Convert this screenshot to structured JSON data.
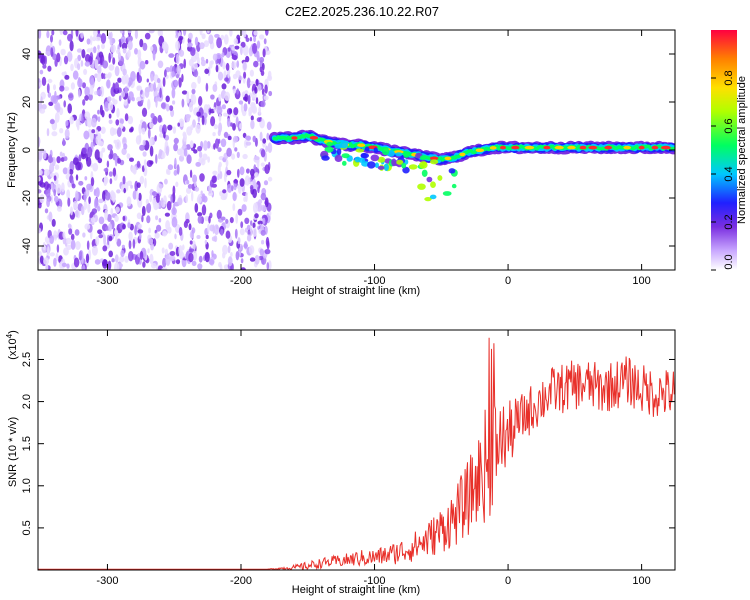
{
  "figure_title": "C2E2.2025.236.10.22.R07",
  "chart_data": [
    {
      "type": "heatmap",
      "title": "C2E2.2025.236.10.22.R07",
      "xlabel": "Height of straight line (km)",
      "ylabel": "Frequency (Hz)",
      "xlim": [
        -352,
        125
      ],
      "ylim": [
        -50,
        50
      ],
      "x_ticks": [
        -300,
        -200,
        -100,
        0,
        100
      ],
      "y_ticks": [
        -40,
        -20,
        0,
        20,
        40
      ],
      "noise_region_x": [
        -352,
        -178
      ],
      "signal_track": {
        "description": "frequency ridge vs height",
        "x": [
          -175,
          -160,
          -150,
          -140,
          -130,
          -120,
          -110,
          -100,
          -90,
          -80,
          -70,
          -60,
          -50,
          -40,
          -30,
          -20,
          -10,
          0,
          20,
          40,
          60,
          80,
          100,
          125
        ],
        "freq": [
          5,
          5,
          6,
          4,
          3,
          2,
          2,
          1,
          0,
          -1,
          -2,
          -3,
          -4,
          -3,
          -1,
          0,
          1,
          1,
          1,
          1,
          1,
          1,
          1,
          1
        ]
      },
      "colorbar": {
        "label": "Normalized spectral amplitude",
        "range": [
          0.0,
          1.0
        ],
        "ticks": [
          0.0,
          0.2,
          0.4,
          0.6,
          0.8
        ],
        "tick_labels": [
          "0.0",
          "0.2",
          "0.4",
          "0.6",
          "0.8"
        ]
      }
    },
    {
      "type": "line",
      "xlabel": "Height of straight line (km)",
      "ylabel": "SNR (10 * v/v)",
      "y_multiplier": "(x10",
      "y_multiplier_exp": "4",
      "y_multiplier_close": ")",
      "xlim": [
        -352,
        125
      ],
      "ylim": [
        0.0,
        2.85
      ],
      "x_ticks": [
        -300,
        -200,
        -100,
        0,
        100
      ],
      "y_ticks": [
        0.5,
        1.0,
        1.5,
        2.0,
        2.5
      ],
      "y_tick_labels": [
        "0.5",
        "1.0",
        "1.5",
        "2.0",
        "2.5"
      ],
      "color": "#e8302a",
      "series": [
        {
          "name": "SNR",
          "x": [
            -352,
            -300,
            -250,
            -200,
            -180,
            -160,
            -150,
            -140,
            -130,
            -120,
            -110,
            -100,
            -90,
            -80,
            -70,
            -60,
            -50,
            -40,
            -30,
            -20,
            -15,
            -10,
            -5,
            0,
            5,
            10,
            20,
            30,
            40,
            50,
            60,
            70,
            80,
            90,
            100,
            110,
            125
          ],
          "values": [
            0.01,
            0.01,
            0.01,
            0.01,
            0.01,
            0.03,
            0.05,
            0.08,
            0.1,
            0.12,
            0.14,
            0.15,
            0.18,
            0.22,
            0.28,
            0.36,
            0.48,
            0.62,
            0.85,
            1.15,
            1.3,
            1.45,
            1.55,
            1.6,
            1.7,
            1.8,
            1.95,
            2.1,
            2.15,
            2.2,
            2.2,
            2.15,
            2.2,
            2.25,
            2.15,
            2.1,
            2.1
          ],
          "spread": [
            0,
            0,
            0,
            0,
            0,
            0.03,
            0.05,
            0.06,
            0.07,
            0.08,
            0.1,
            0.1,
            0.12,
            0.15,
            0.18,
            0.22,
            0.28,
            0.35,
            0.45,
            0.55,
            0.8,
            0.6,
            0.45,
            0.4,
            0.35,
            0.3,
            0.3,
            0.3,
            0.3,
            0.3,
            0.3,
            0.3,
            0.3,
            0.3,
            0.3,
            0.3,
            0.3
          ]
        }
      ]
    }
  ],
  "colors": {
    "noise": "#7a2ee0",
    "line": "#e8302a",
    "axis": "#000000"
  }
}
